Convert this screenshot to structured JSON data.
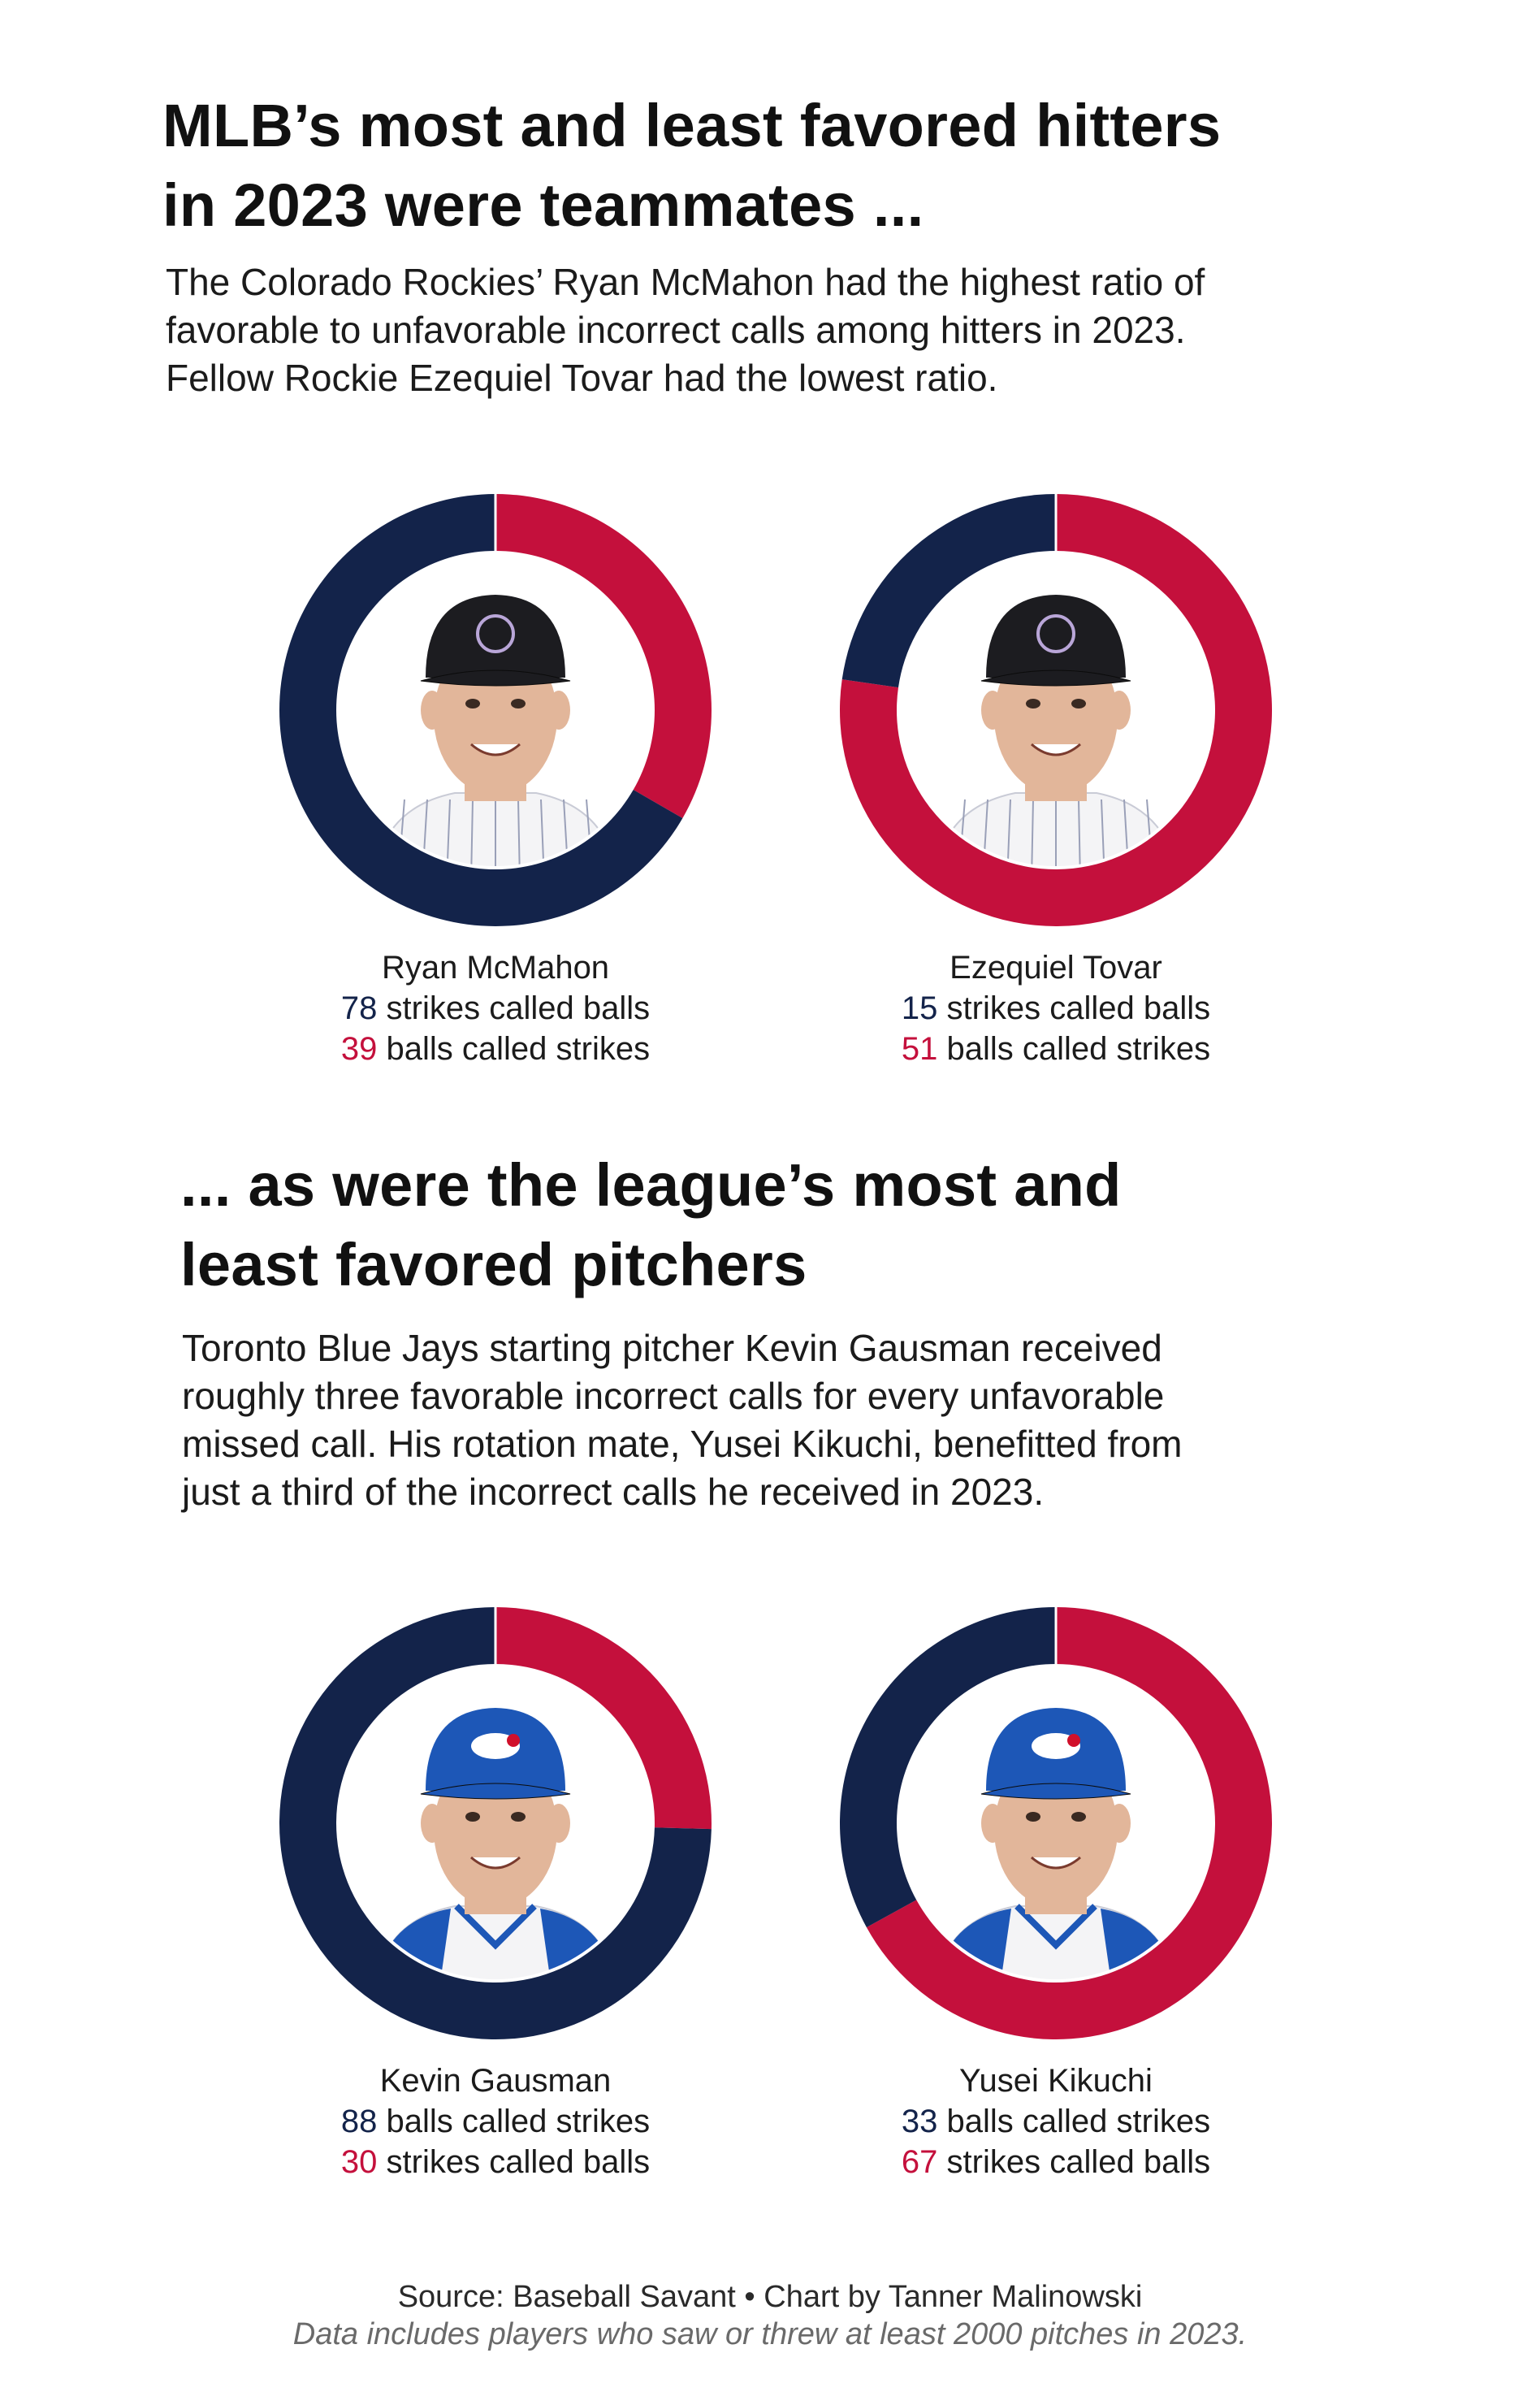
{
  "colors": {
    "navy": "#13234a",
    "red": "#c4103c",
    "skin": "#e2b69a",
    "cap_black": "#1c1c20",
    "cap_blue": "#1d57b7"
  },
  "section1": {
    "title_line1": "MLB’s most and least favored hitters",
    "title_line2": "in 2023 were teammates ...",
    "lede_line1": "The Colorado Rockies’ Ryan McMahon had the highest ratio of",
    "lede_line2": "favorable to unfavorable incorrect calls among hitters in 2023.",
    "lede_line3": "Fellow Rockie Ezequiel Tovar had the lowest ratio."
  },
  "section2": {
    "title_line1": "... as were the league’s most and",
    "title_line2": "least favored pitchers",
    "lede_line1": "Toronto Blue Jays starting pitcher Kevin Gausman received",
    "lede_line2": "roughly three favorable incorrect calls for every unfavorable",
    "lede_line3": "missed call. His rotation mate, Yusei Kikuchi, benefitted from",
    "lede_line4": "just a third of the incorrect calls he received in 2023."
  },
  "chart_data": [
    {
      "type": "pie",
      "name": "Ryan McMahon",
      "slices": [
        {
          "label": "strikes called balls",
          "value": 78,
          "color": "#13234a"
        },
        {
          "label": "balls called strikes",
          "value": 39,
          "color": "#c4103c"
        }
      ],
      "photo_icon": "player-headshot-rockies-cap-icon"
    },
    {
      "type": "pie",
      "name": "Ezequiel Tovar",
      "slices": [
        {
          "label": "strikes called balls",
          "value": 15,
          "color": "#13234a"
        },
        {
          "label": "balls called strikes",
          "value": 51,
          "color": "#c4103c"
        }
      ],
      "photo_icon": "player-headshot-rockies-cap-icon"
    },
    {
      "type": "pie",
      "name": "Kevin Gausman",
      "slices": [
        {
          "label": "balls called strikes",
          "value": 88,
          "color": "#13234a"
        },
        {
          "label": "strikes called balls",
          "value": 30,
          "color": "#c4103c"
        }
      ],
      "photo_icon": "player-headshot-blue-jays-cap-icon"
    },
    {
      "type": "pie",
      "name": "Yusei Kikuchi",
      "slices": [
        {
          "label": "balls called strikes",
          "value": 33,
          "color": "#13234a"
        },
        {
          "label": "strikes called balls",
          "value": 67,
          "color": "#c4103c"
        }
      ],
      "photo_icon": "player-headshot-blue-jays-cap-icon"
    }
  ],
  "footer": {
    "source": "Source: Baseball Savant • Chart by Tanner Malinowski",
    "note": "Data includes players who saw or threw at least 2000 pitches in 2023."
  }
}
